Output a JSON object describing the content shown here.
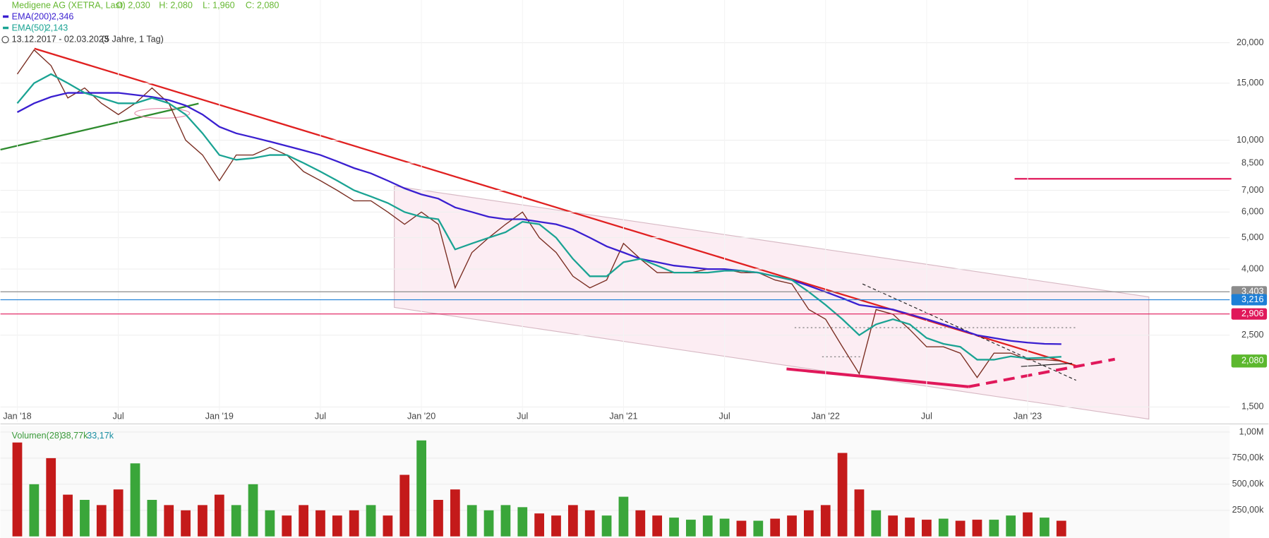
{
  "chart_data": [
    {
      "type": "line",
      "title": "Medigene AG (XETRA, Last)",
      "title_color": "#66b832",
      "ohlc": [
        "O: 2,030",
        "H: 2,080",
        "L: 1,960",
        "C: 2,080"
      ],
      "period": "13.12.2017 - 02.03.2023",
      "period_note": "(5 Jahre, 1 Tag)",
      "log_scale": true,
      "grid": true,
      "x": [
        "2018-01",
        "2018-02",
        "2018-03",
        "2018-04",
        "2018-05",
        "2018-06",
        "2018-07",
        "2018-08",
        "2018-09",
        "2018-10",
        "2018-11",
        "2018-12",
        "2019-01",
        "2019-02",
        "2019-03",
        "2019-04",
        "2019-05",
        "2019-06",
        "2019-07",
        "2019-08",
        "2019-09",
        "2019-10",
        "2019-11",
        "2019-12",
        "2020-01",
        "2020-02",
        "2020-03",
        "2020-04",
        "2020-05",
        "2020-06",
        "2020-07",
        "2020-08",
        "2020-09",
        "2020-10",
        "2020-11",
        "2020-12",
        "2021-01",
        "2021-02",
        "2021-03",
        "2021-04",
        "2021-05",
        "2021-06",
        "2021-07",
        "2021-08",
        "2021-09",
        "2021-10",
        "2021-11",
        "2021-12",
        "2022-01",
        "2022-02",
        "2022-03",
        "2022-04",
        "2022-05",
        "2022-06",
        "2022-07",
        "2022-08",
        "2022-09",
        "2022-10",
        "2022-11",
        "2022-12",
        "2023-01",
        "2023-02",
        "2023-03"
      ],
      "series": [
        {
          "name": "Medigene AG (XETRA, Last)",
          "color": "#7a2e22",
          "values": [
            16,
            19,
            17,
            13.5,
            14.5,
            13,
            12,
            13,
            14.5,
            13,
            10,
            9,
            7.5,
            9,
            9,
            9.5,
            9,
            8,
            7.5,
            7,
            6.5,
            6.5,
            6,
            5.5,
            6,
            5.5,
            3.5,
            4.5,
            5,
            5.5,
            6,
            5,
            4.5,
            3.8,
            3.5,
            3.7,
            4.8,
            4.3,
            3.9,
            3.9,
            3.9,
            4.0,
            4.0,
            3.9,
            3.9,
            3.7,
            3.6,
            3.0,
            2.8,
            2.3,
            1.9,
            3.0,
            2.9,
            2.6,
            2.3,
            2.3,
            2.2,
            1.85,
            2.2,
            2.2,
            2.1,
            2.1,
            2.08
          ]
        },
        {
          "name": "EMA(200)",
          "legend_value": "2,346",
          "color": "#3a1fd0",
          "values": [
            12.2,
            13,
            13.6,
            14,
            14,
            14,
            14,
            13.8,
            13.6,
            13.3,
            12.8,
            12.0,
            11,
            10.5,
            10.2,
            9.9,
            9.6,
            9.3,
            9.0,
            8.6,
            8.2,
            7.9,
            7.5,
            7.1,
            6.8,
            6.6,
            6.2,
            6.0,
            5.8,
            5.7,
            5.7,
            5.6,
            5.5,
            5.3,
            5.0,
            4.7,
            4.5,
            4.3,
            4.2,
            4.1,
            4.05,
            4.0,
            4.0,
            3.95,
            3.9,
            3.8,
            3.7,
            3.55,
            3.4,
            3.25,
            3.1,
            3.05,
            3.0,
            2.9,
            2.8,
            2.7,
            2.6,
            2.5,
            2.45,
            2.4,
            2.37,
            2.35,
            2.346
          ]
        },
        {
          "name": "EMA(50)",
          "legend_value": "2,143",
          "color": "#1aa393",
          "values": [
            13,
            15,
            16,
            15,
            14,
            13.5,
            13,
            13,
            13.5,
            13,
            12,
            10.5,
            9,
            8.7,
            8.8,
            9,
            9,
            8.5,
            8,
            7.5,
            7,
            6.7,
            6.4,
            6,
            5.8,
            5.7,
            4.6,
            4.8,
            5.0,
            5.2,
            5.6,
            5.5,
            5.0,
            4.3,
            3.8,
            3.8,
            4.2,
            4.3,
            4.1,
            3.9,
            3.9,
            3.9,
            3.95,
            3.95,
            3.9,
            3.8,
            3.7,
            3.4,
            3.1,
            2.8,
            2.5,
            2.7,
            2.8,
            2.7,
            2.45,
            2.35,
            2.3,
            2.1,
            2.1,
            2.15,
            2.12,
            2.13,
            2.143
          ]
        }
      ],
      "xlim": [
        "2017-12",
        "2024-01"
      ],
      "xticks": [
        {
          "value": "2018-01",
          "label": "Jan '18"
        },
        {
          "value": "2018-07",
          "label": "Jul"
        },
        {
          "value": "2019-01",
          "label": "Jan '19"
        },
        {
          "value": "2019-07",
          "label": "Jul"
        },
        {
          "value": "2020-01",
          "label": "Jan '20"
        },
        {
          "value": "2020-07",
          "label": "Jul"
        },
        {
          "value": "2021-01",
          "label": "Jan '21"
        },
        {
          "value": "2021-07",
          "label": "Jul"
        },
        {
          "value": "2022-01",
          "label": "Jan '22"
        },
        {
          "value": "2022-07",
          "label": "Jul"
        },
        {
          "value": "2023-01",
          "label": "Jan '23"
        }
      ],
      "ylim": [
        1.345,
        27.1
      ],
      "yticks": [
        {
          "value": 1.5,
          "label": "1,500"
        },
        {
          "value": 2.5,
          "label": "2,500"
        },
        {
          "value": 4,
          "label": "4,000"
        },
        {
          "value": 5,
          "label": "5,000"
        },
        {
          "value": 6,
          "label": "6,000"
        },
        {
          "value": 7,
          "label": "7,000"
        },
        {
          "value": 8.5,
          "label": "8,500"
        },
        {
          "value": 10,
          "label": "10,000"
        },
        {
          "value": 15,
          "label": "15,000"
        },
        {
          "value": 20,
          "label": "20,000"
        }
      ],
      "levels": [
        {
          "value": 3.403,
          "label": "3,403",
          "color": "#8c8c8c"
        },
        {
          "value": 3.216,
          "label": "3,216",
          "color": "#1e7fd6"
        },
        {
          "value": 2.906,
          "label": "2,906",
          "color": "#e0185a"
        }
      ],
      "last_price": {
        "value": 2.08,
        "label": "2,080",
        "color": "#5cb82e"
      }
    },
    {
      "type": "bar",
      "title": "Volumen(28)",
      "title_color": "#3a9a3a",
      "ma_labels": [
        "38,77k",
        "33,17k"
      ],
      "up_color": "#3aa63a",
      "down_color": "#c41a1a",
      "values": [
        900000,
        500000,
        750000,
        400000,
        350000,
        300000,
        450000,
        700000,
        350000,
        300000,
        250000,
        300000,
        400000,
        300000,
        500000,
        250000,
        200000,
        300000,
        250000,
        200000,
        250000,
        300000,
        200000,
        590000,
        920000,
        350000,
        450000,
        300000,
        250000,
        300000,
        280000,
        220000,
        200000,
        300000,
        250000,
        200000,
        380000,
        250000,
        200000,
        180000,
        160000,
        200000,
        170000,
        150000,
        150000,
        170000,
        200000,
        250000,
        300000,
        800000,
        450000,
        250000,
        200000,
        180000,
        160000,
        170000,
        150000,
        160000,
        160000,
        200000,
        230000,
        180000,
        150000
      ],
      "ylim": [
        0,
        1062500
      ],
      "yticks": [
        {
          "value": 250000,
          "label": "250,00k"
        },
        {
          "value": 500000,
          "label": "500,00k"
        },
        {
          "value": 750000,
          "label": "750,00k"
        },
        {
          "value": 1000000,
          "label": "1,00M"
        }
      ]
    }
  ]
}
